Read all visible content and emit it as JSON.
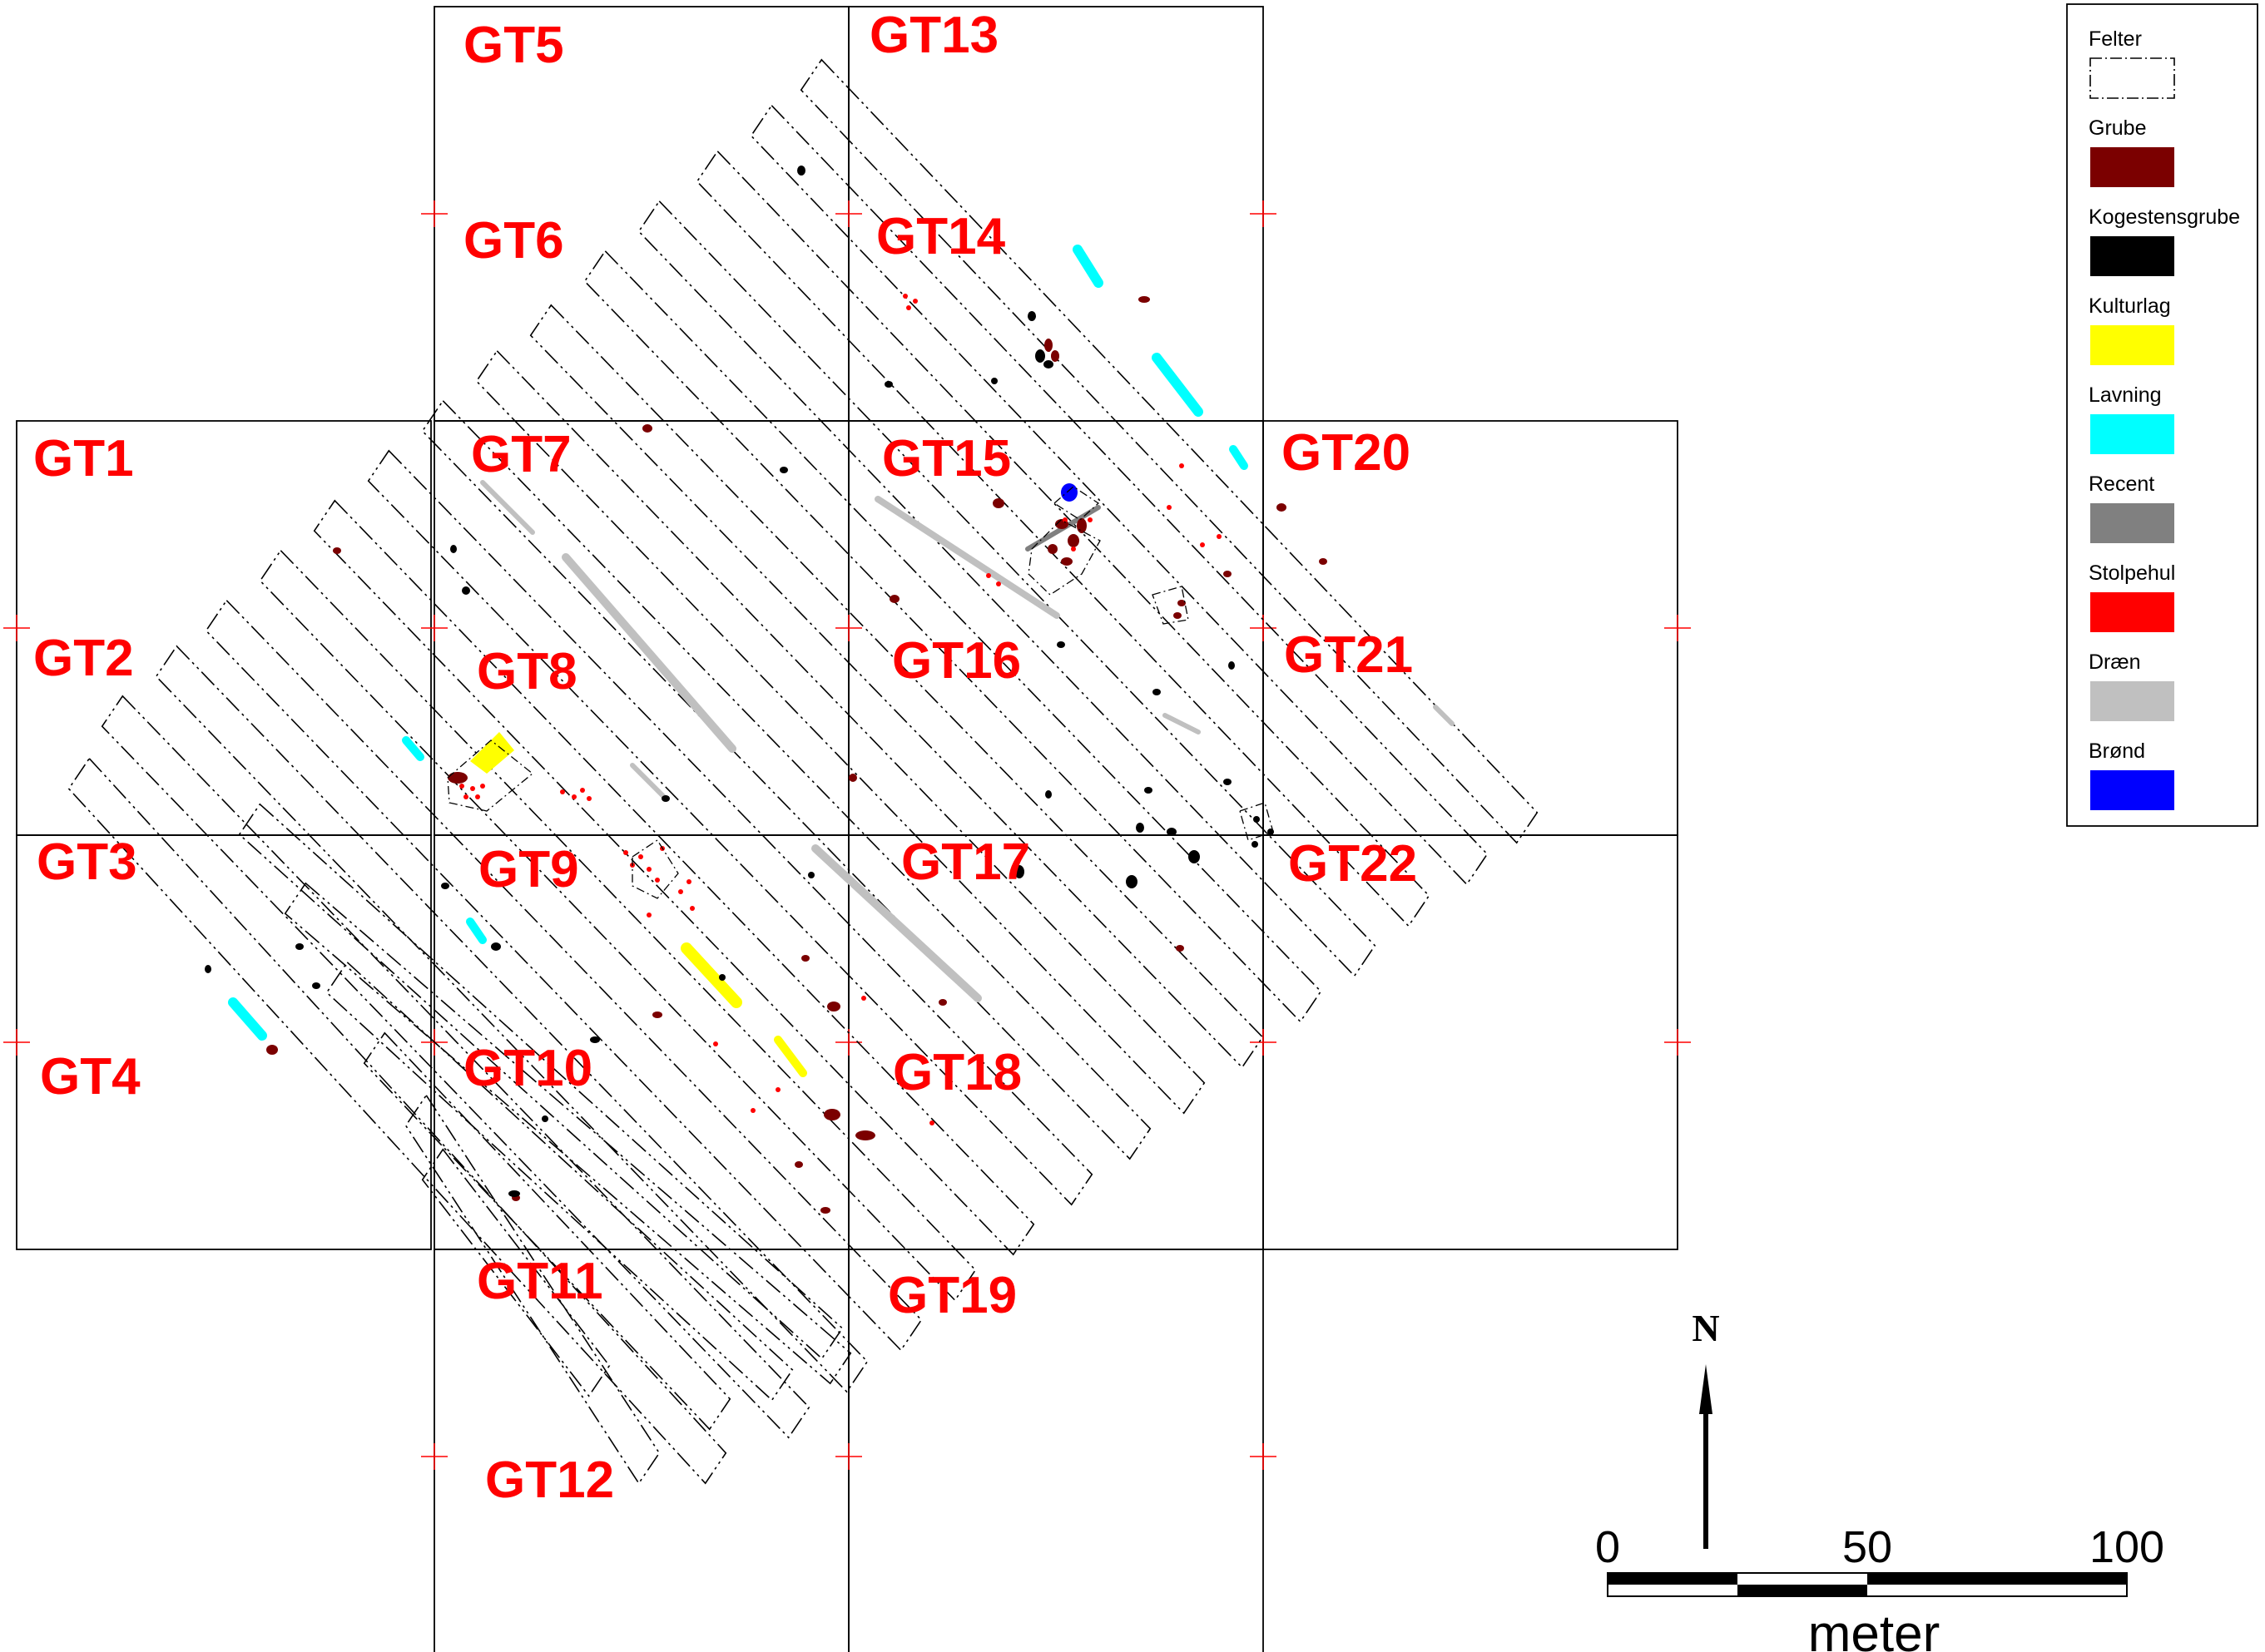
{
  "header": {
    "text": ""
  },
  "grid_labels": [
    "GT1",
    "GT2",
    "GT3",
    "GT4",
    "GT5",
    "GT6",
    "GT7",
    "GT8",
    "GT9",
    "GT10",
    "GT11",
    "GT12",
    "GT13",
    "GT14",
    "GT15",
    "GT16",
    "GT17",
    "GT18",
    "GT19",
    "GT20",
    "GT21",
    "GT22"
  ],
  "legend": {
    "items": [
      {
        "label": "Felter",
        "color": "#ffffff",
        "style": "dashdot-outline"
      },
      {
        "label": "Grube",
        "color": "#7b0000"
      },
      {
        "label": "Kogestensgrube",
        "color": "#000000"
      },
      {
        "label": "Kulturlag",
        "color": "#ffff00"
      },
      {
        "label": "Lavning",
        "color": "#00ffff"
      },
      {
        "label": "Recent",
        "color": "#808080"
      },
      {
        "label": "Stolpehul",
        "color": "#ff0000"
      },
      {
        "label": "Dræn",
        "color": "#c0c0c0"
      },
      {
        "label": "Brønd",
        "color": "#0000ff"
      }
    ]
  },
  "scale_bar": {
    "ticks": [
      "0",
      "50",
      "100"
    ],
    "unit": "meter"
  },
  "north_arrow": {
    "label": "N"
  },
  "colors": {
    "grid_label": "#ff0000",
    "grube": "#7b0000",
    "kogestensgrube": "#000000",
    "kulturlag": "#ffff00",
    "lavning": "#00ffff",
    "recent": "#808080",
    "stolpehul": "#ff0000",
    "draen": "#c0c0c0",
    "broend": "#0000ff"
  }
}
